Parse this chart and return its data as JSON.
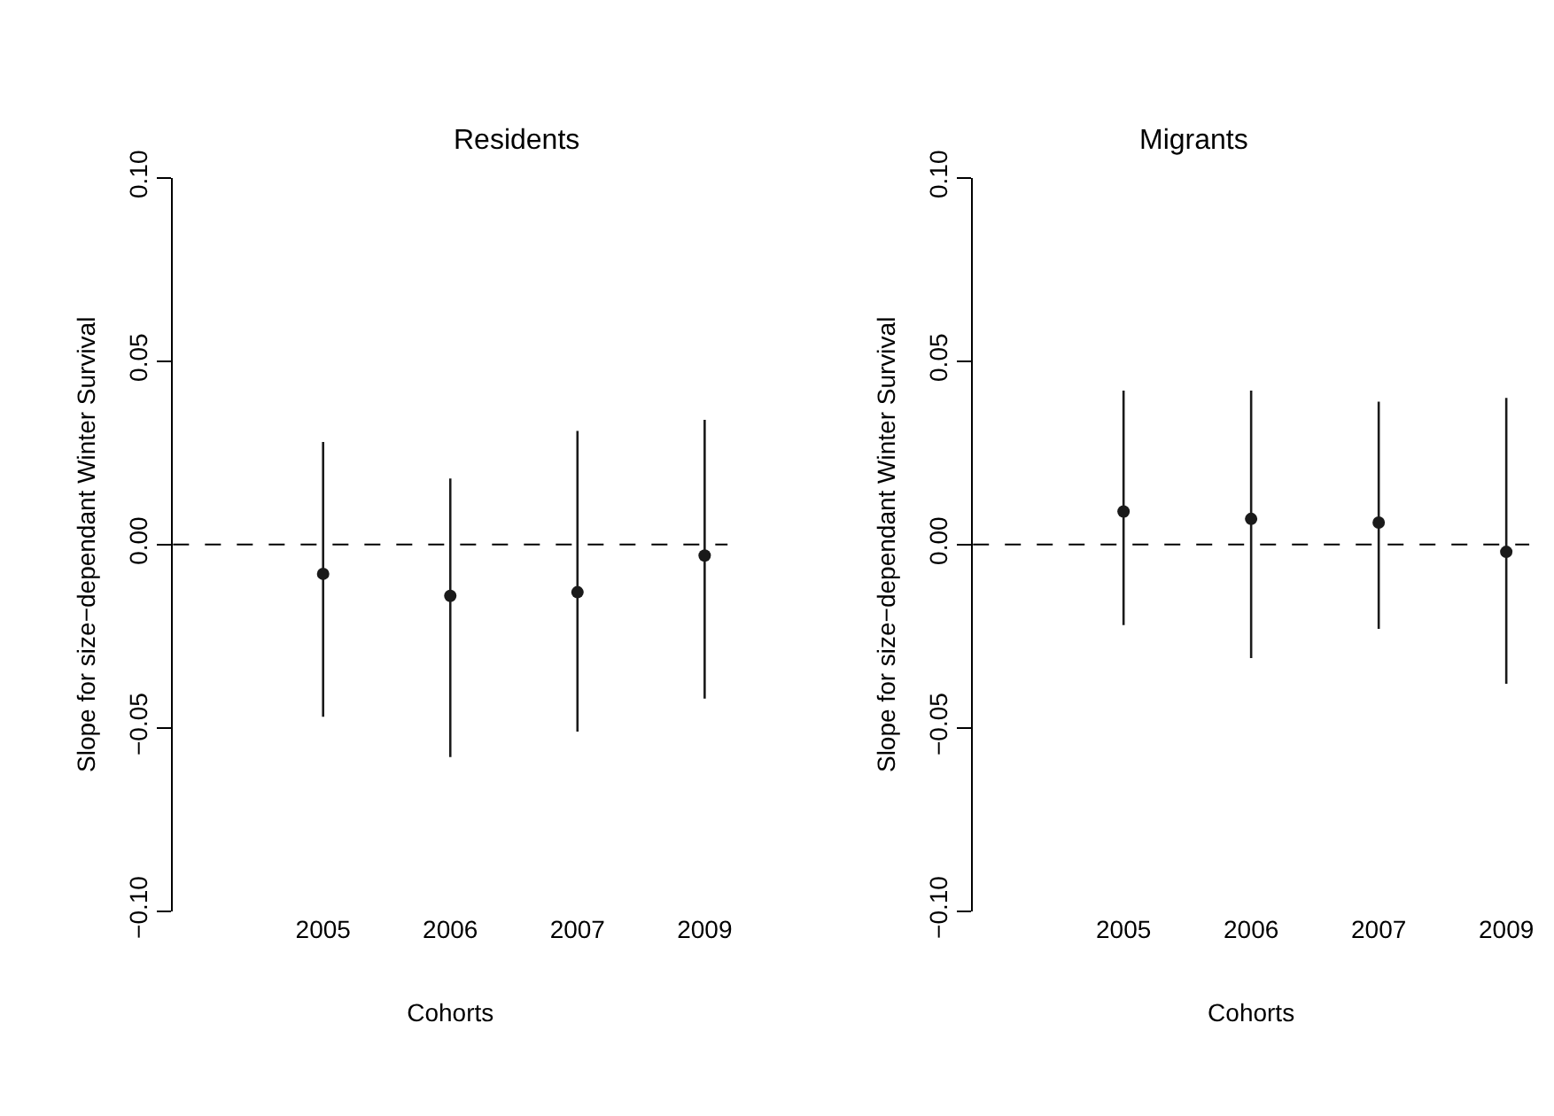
{
  "chart_data": [
    {
      "type": "scatter",
      "title": "Residents",
      "xlabel": "Cohorts",
      "ylabel": "Slope for size−dependant Winter Survival",
      "categories": [
        "2005",
        "2006",
        "2007",
        "2009"
      ],
      "series": [
        {
          "color": "#1a1a1a",
          "values": [
            -0.008,
            -0.014,
            -0.013,
            -0.003
          ],
          "errors": [
            [
              -0.047,
              0.028
            ],
            [
              -0.058,
              0.018
            ],
            [
              -0.051,
              0.031
            ],
            [
              -0.042,
              0.034
            ]
          ]
        }
      ],
      "ylim": [
        -0.1,
        0.1
      ],
      "yticks": [
        {
          "value": -0.1,
          "label": "−0.10"
        },
        {
          "value": -0.05,
          "label": "−0.05"
        },
        {
          "value": 0,
          "label": "0.00"
        },
        {
          "value": 0.05,
          "label": "0.05"
        },
        {
          "value": 0.1,
          "label": "0.10"
        }
      ],
      "ref_lines": [
        {
          "axis": "y",
          "value": 0,
          "label": null,
          "color": "#000000",
          "line_style": "dashed"
        }
      ],
      "marker": "circle"
    },
    {
      "type": "scatter",
      "title": "Migrants",
      "xlabel": "Cohorts",
      "ylabel": "Slope for size−dependant Winter Survival",
      "categories": [
        "2005",
        "2006",
        "2007",
        "2009"
      ],
      "series": [
        {
          "color": "#1a1a1a",
          "values": [
            0.009,
            0.007,
            0.006,
            -0.002
          ],
          "errors": [
            [
              -0.022,
              0.042
            ],
            [
              -0.031,
              0.042
            ],
            [
              -0.023,
              0.039
            ],
            [
              -0.038,
              0.04
            ]
          ]
        }
      ],
      "ylim": [
        -0.1,
        0.1
      ],
      "yticks": [
        {
          "value": -0.1,
          "label": "−0.10"
        },
        {
          "value": -0.05,
          "label": "−0.05"
        },
        {
          "value": 0,
          "label": "0.00"
        },
        {
          "value": 0.05,
          "label": "0.05"
        },
        {
          "value": 0.1,
          "label": "0.10"
        }
      ],
      "ref_lines": [
        {
          "axis": "y",
          "value": 0,
          "label": null,
          "color": "#000000",
          "line_style": "dashed"
        }
      ],
      "marker": "circle"
    }
  ]
}
